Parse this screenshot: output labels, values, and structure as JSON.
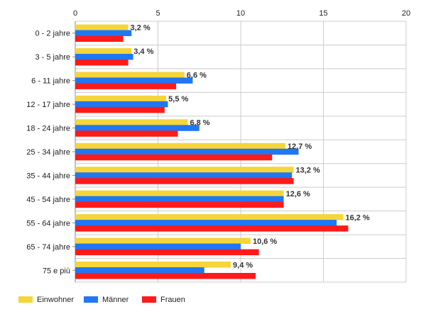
{
  "chart_data": {
    "type": "bar",
    "orientation": "horizontal",
    "title": "",
    "xlabel": "",
    "ylabel": "",
    "xlim": [
      0,
      20
    ],
    "x_ticks": [
      "0",
      "5",
      "10",
      "15",
      "20"
    ],
    "grid": true,
    "legend_position": "bottom-left",
    "categories": [
      "0 - 2 jahre",
      "3 - 5 jahre",
      "6 - 11 jahre",
      "12 - 17 jahre",
      "18 - 24 jahre",
      "25 - 34 jahre",
      "35 - 44 jahre",
      "45 - 54 jahre",
      "55 - 64 jahre",
      "65 - 74 jahre",
      "75 e più"
    ],
    "series": [
      {
        "name": "Einwohner",
        "color": "#f5d53a",
        "values": [
          3.2,
          3.4,
          6.6,
          5.5,
          6.8,
          12.7,
          13.2,
          12.6,
          16.2,
          10.6,
          9.4
        ]
      },
      {
        "name": "Männer",
        "color": "#1f77f4",
        "values": [
          3.4,
          3.5,
          7.1,
          5.6,
          7.5,
          13.5,
          13.1,
          12.6,
          15.8,
          10.0,
          7.8
        ]
      },
      {
        "name": "Frauen",
        "color": "#ff1a1a",
        "values": [
          2.9,
          3.2,
          6.1,
          5.4,
          6.2,
          11.9,
          13.2,
          12.6,
          16.5,
          11.1,
          10.9
        ]
      }
    ],
    "data_labels": [
      "3,2 %",
      "3,4 %",
      "6,6 %",
      "5,5 %",
      "6,8 %",
      "12,7 %",
      "13,2 %",
      "12,6 %",
      "16,2 %",
      "10,6 %",
      "9,4 %"
    ]
  }
}
